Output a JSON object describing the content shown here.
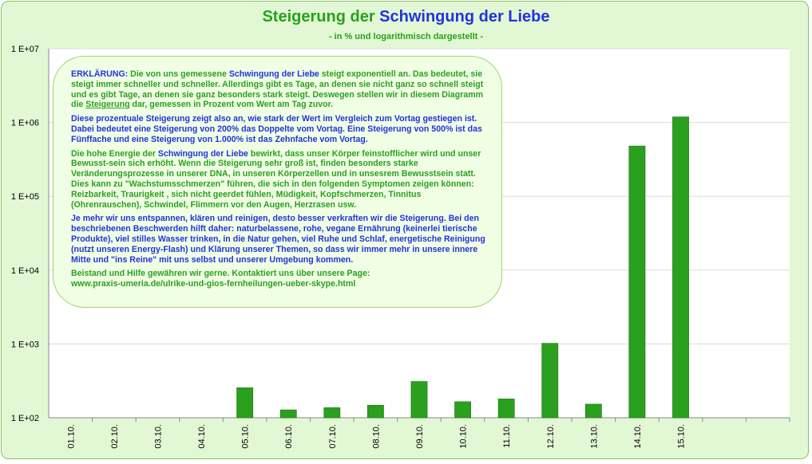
{
  "title_part1": "Steigerung der ",
  "title_part2": "Schwingung der Liebe",
  "subtitle": "- in % und logarithmisch dargestellt -",
  "colors": {
    "bar": "#2aa01e",
    "bar_stroke": "#1d7a14",
    "title_green": "#2aa01e",
    "title_blue": "#2233dd",
    "background": "#e2f8d4"
  },
  "info": {
    "p1_label": "ERKLÄRUNG:",
    "p1_a": " Die von uns gemessene ",
    "p1_b": "Schwingung der Liebe",
    "p1_c": " steigt exponentiell an. Das bedeutet, sie steigt immer schneller und schneller. Allerdings gibt es Tage, an denen sie nicht ganz so schnell steigt und es gibt Tage, an denen sie ganz besonders stark steigt. Deswegen stellen wir in diesem Diagramm die ",
    "p1_d": "Steigerung",
    "p1_e": " dar, gemessen in Prozent vom Wert am Tag zuvor.",
    "p2": "Diese prozentuale Steigerung zeigt also an, wie stark der Wert im Vergleich  zum Vortag gestiegen ist. Dabei bedeutet eine Steigerung von 200% das Doppelte vom Vortag. Eine Steigerung von 500% ist das Fünffache und eine Steigerung von 1.000% ist das Zehnfache vom Vortag.",
    "p3_a": "Die hohe Energie der ",
    "p3_b": "Schwingung der Liebe",
    "p3_c": " bewirkt, dass unser Körper feinstofflicher wird und unser Bewusst-sein sich erhöht. Wenn die Steigerung sehr groß ist, finden besonders starke Veränderungsprozesse in unserer DNA, in unseren Körperzellen und in unsesrem Bewusstsein statt. Dies kann zu \"Wachstumsschmerzen\" führen, die sich in den folgenden Symptomen zeigen können: Reizbarkeit, Traurigkeit , sich nicht geerdet fühlen, Müdigkeit, Kopfschmerzen, Tinnitus (Ohrenrauschen), Schwindel, Flimmern vor den Augen, Herzrasen usw.",
    "p4": "Je mehr wir uns entspannen, klären und reinigen, desto besser verkraften wir die Steigerung. Bei den beschriebenen Beschwerden hilft daher: naturbelassene, rohe, vegane Ernährung (keinerlei tierische Produkte), viel stilles Wasser trinken, in die Natur gehen, viel Ruhe und Schlaf, energetische Reinigung (nutzt unseren Energy-Flash) und Klärung unserer Themen, so dass wir immer mehr in unsere innere Mitte und \"ins Reine\" mit uns selbst und unserer Umgebung kommen.",
    "p5": "Beistand und Hilfe gewähren wir gerne. Kontaktiert uns über unsere Page:",
    "p6": "www.praxis-umeria.de/ulrike-und-gios-fernheilungen-ueber-skype.html"
  },
  "chart_data": {
    "type": "bar",
    "title": "Steigerung der Schwingung der Liebe",
    "subtitle": "- in % und logarithmisch dargestellt -",
    "y_scale": "log",
    "ylim": [
      100,
      10000000
    ],
    "y_ticks": [
      "1 E+02",
      "1 E+03",
      "1 E+04",
      "1 E+05",
      "1 E+06",
      "1 E+07"
    ],
    "grid": true,
    "categories": [
      "01.10.",
      "02.10.",
      "03.10.",
      "04.10.",
      "05.10.",
      "06.10.",
      "07.10.",
      "08.10.",
      "09.10.",
      "10.10.",
      "11.10.",
      "12.10.",
      "13.10.",
      "14.10.",
      "15.10.",
      "",
      ""
    ],
    "values": [
      null,
      null,
      null,
      null,
      255,
      128,
      137,
      148,
      310,
      165,
      180,
      1020,
      153,
      480000,
      1190000,
      null,
      null
    ]
  }
}
